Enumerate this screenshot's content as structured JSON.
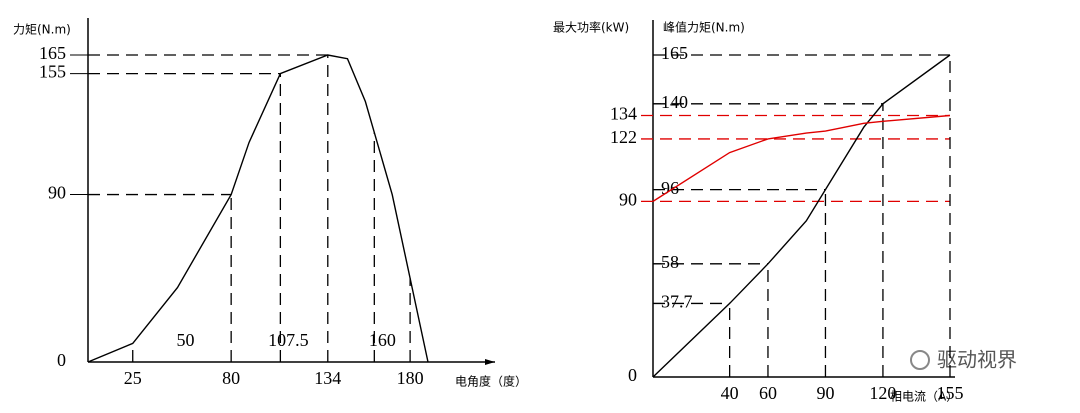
{
  "watermark": "驱动视界",
  "chart_data": [
    {
      "type": "line",
      "y_label": "力矩(N.m)",
      "x_label": "电角度（度）",
      "x": [
        0,
        25,
        50,
        80,
        90,
        107.5,
        134,
        145,
        155,
        170,
        190
      ],
      "series": [
        {
          "color": "#000000",
          "values": [
            0,
            10,
            40,
            90,
            118,
            155,
            165,
            163,
            140,
            90,
            0
          ]
        }
      ],
      "annotations": [
        50,
        107.5,
        160
      ],
      "xlim": [
        0,
        190
      ],
      "ylim": [
        0,
        165
      ],
      "xticks": [
        25,
        80,
        134,
        180
      ],
      "yticks": [
        0,
        90,
        155,
        165
      ]
    },
    {
      "type": "line",
      "x_label": "相电流（A）",
      "x": [
        0,
        40,
        60,
        80,
        90,
        110,
        120,
        155
      ],
      "series": [
        {
          "name": "峰值力矩(N.m)",
          "color": "#000000",
          "values": [
            0,
            37.7,
            58,
            80,
            96,
            128,
            140,
            165
          ]
        },
        {
          "name": "最大功率(kW)",
          "color": "#e00000",
          "axis": "y2",
          "values": [
            90,
            115,
            122,
            125,
            126,
            130,
            131,
            134
          ]
        }
      ],
      "xlim": [
        0,
        155
      ],
      "ylim": [
        0,
        165
      ],
      "y2lim": [
        0,
        165
      ],
      "xticks": [
        40,
        60,
        90,
        120,
        155
      ],
      "yticks": [
        0,
        37.7,
        58,
        96,
        140,
        165
      ],
      "y2ticks": [
        90,
        122,
        134
      ]
    }
  ]
}
